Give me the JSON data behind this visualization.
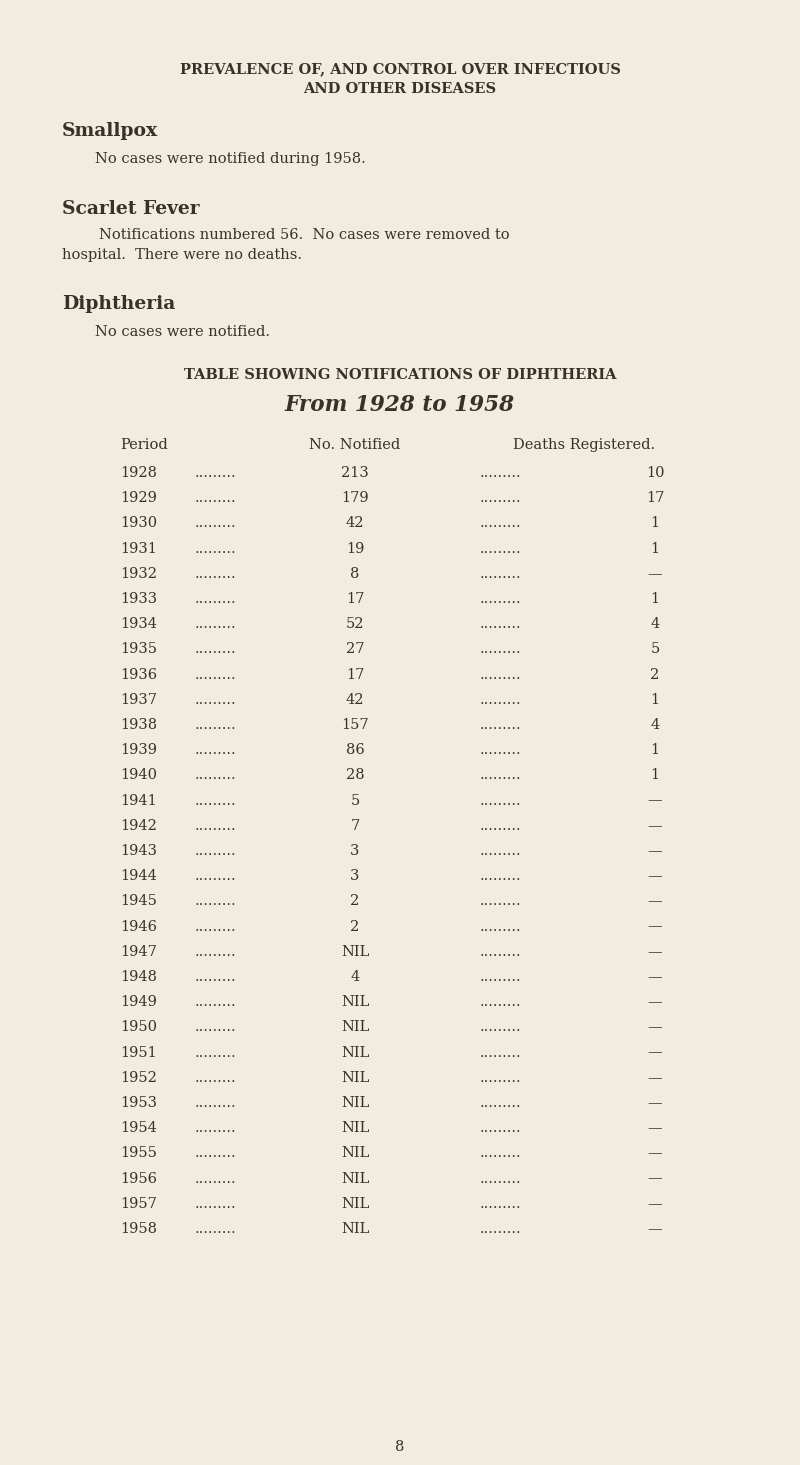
{
  "bg_color": "#f0ede0",
  "text_color": "#3a3028",
  "page_number": "8",
  "title_line1": "PREVALENCE OF, AND CONTROL OVER INFECTIOUS",
  "title_line2": "AND OTHER DISEASES",
  "smallpox_heading": "Smallpox",
  "smallpox_body": "No cases were notified during 1958.",
  "scarlet_heading": "Scarlet Fever",
  "scarlet_body1": "        Notifications numbered 56.  No cases were removed to",
  "scarlet_body2": "hospital.  There were no deaths.",
  "diphtheria_heading": "Diphtheria",
  "diphtheria_body": "No cases were notified.",
  "table_title1": "TABLE SHOWING NOTIFICATIONS OF DIPHTHERIA",
  "table_title2": "From 1928 to 1958",
  "col_period": "Period",
  "col_notified": "No. Notified",
  "col_deaths": "Deaths Registered.",
  "rows": [
    [
      "1928",
      "213",
      "10"
    ],
    [
      "1929",
      "179",
      "17"
    ],
    [
      "1930",
      "42",
      "1"
    ],
    [
      "1931",
      "19",
      "1"
    ],
    [
      "1932",
      "8",
      "—"
    ],
    [
      "1933",
      "17",
      "1"
    ],
    [
      "1934",
      "52",
      "4"
    ],
    [
      "1935",
      "27",
      "5"
    ],
    [
      "1936",
      "17",
      "2"
    ],
    [
      "1937",
      "42",
      "1"
    ],
    [
      "1938",
      "157",
      "4"
    ],
    [
      "1939",
      "86",
      "1"
    ],
    [
      "1940",
      "28",
      "1"
    ],
    [
      "1941",
      "5",
      "—"
    ],
    [
      "1942",
      "7",
      "—"
    ],
    [
      "1943",
      "3",
      "—"
    ],
    [
      "1944",
      "3",
      "—"
    ],
    [
      "1945",
      "2",
      "—"
    ],
    [
      "1946",
      "2",
      "—"
    ],
    [
      "1947",
      "NIL",
      "—"
    ],
    [
      "1948",
      "4",
      "—"
    ],
    [
      "1949",
      "NIL",
      "—"
    ],
    [
      "1950",
      "NIL",
      "—"
    ],
    [
      "1951",
      "NIL",
      "—"
    ],
    [
      "1952",
      "NIL",
      "—"
    ],
    [
      "1953",
      "NIL",
      "—"
    ],
    [
      "1954",
      "NIL",
      "—"
    ],
    [
      "1955",
      "NIL",
      "—"
    ],
    [
      "1956",
      "NIL",
      "—"
    ],
    [
      "1957",
      "NIL",
      "—"
    ],
    [
      "1958",
      "NIL",
      "—"
    ]
  ],
  "title_fontsize": 10.5,
  "heading_fontsize": 13.5,
  "body_fontsize": 10.5,
  "table_title1_fontsize": 10.5,
  "table_title2_fontsize": 15.5,
  "table_fontsize": 10.5,
  "dots1": ".........",
  "dots2": "........."
}
